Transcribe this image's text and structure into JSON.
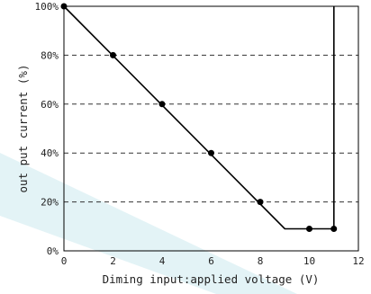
{
  "chart_data": {
    "type": "line",
    "xlabel": "Diming input:applied voltage (V)",
    "ylabel": "out put current (%)",
    "xlim": [
      0,
      12
    ],
    "ylim": [
      0,
      100
    ],
    "x_ticks": [
      "0",
      "2",
      "4",
      "6",
      "8",
      "10",
      "12"
    ],
    "y_ticks": [
      "0%",
      "20%",
      "40%",
      "60%",
      "80%",
      "100%"
    ],
    "grid": "horizontal dashed at 20%, 40%, 60%, 80%",
    "series": [
      {
        "line": [
          [
            0,
            100
          ],
          [
            9,
            9
          ],
          [
            11,
            9
          ],
          [
            11,
            100
          ]
        ],
        "markers": [
          [
            0,
            100
          ],
          [
            2,
            80
          ],
          [
            4,
            60
          ],
          [
            6,
            40
          ],
          [
            8,
            20
          ],
          [
            10,
            9
          ],
          [
            11,
            9
          ]
        ]
      }
    ],
    "colors": {
      "line": "#000000",
      "grid": "#333333",
      "watermark": "#e3f3f6"
    }
  }
}
